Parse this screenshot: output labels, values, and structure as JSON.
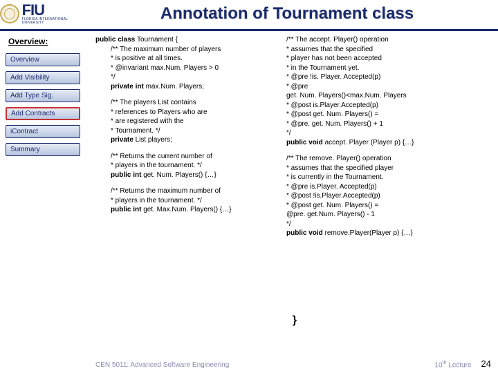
{
  "title": "Annotation of  Tournament class",
  "logo": {
    "text": "FIU",
    "sub": "FLORIDA INTERNATIONAL UNIVERSITY"
  },
  "sidebar": {
    "heading": "Overview:",
    "items": [
      {
        "label": "Overview",
        "active": false
      },
      {
        "label": "Add Visibility",
        "active": false
      },
      {
        "label": "Add Type Sig.",
        "active": false
      },
      {
        "label": "Add Contracts",
        "active": true
      },
      {
        "label": "iContract",
        "active": false
      },
      {
        "label": "Summary",
        "active": false
      }
    ]
  },
  "code": {
    "decl_pre": "public class ",
    "decl_name": "Tournament {",
    "b1_l1": "/** The maximum number of players",
    "b1_l2": " * is positive at all times.",
    "b1_l3": " * @invariant max.Num. Players > 0",
    "b1_l4": " */",
    "b1_l5a": "private int ",
    "b1_l5b": "max.Num. Players;",
    "b2_l1": "/** The players List contains",
    "b2_l2": " * references to Players who are",
    "b2_l3": " * are registered with the",
    "b2_l4": " * Tournament. */",
    "b2_l5a": "private ",
    "b2_l5b": "List players;",
    "b3_l1": "/** Returns the current number of",
    "b3_l2": " * players in the tournament. */",
    "b3_l3a": "public int ",
    "b3_l3b": "get. Num. Players() {…}",
    "b4_l1": "/** Returns the maximum number of",
    "b4_l2": " * players in the tournament. */",
    "b4_l3a": "public int ",
    "b4_l3b": "get. Max.Num. Players() {…}",
    "c1_l1": "/** The accept. Player() operation",
    "c1_l2": " * assumes that the specified",
    "c1_l3": " * player has not been accepted",
    "c1_l4": " * in the Tournament yet.",
    "c1_l5": " * @pre !is. Player. Accepted(p)",
    "c1_l6": " * @pre",
    "c1_l7": "get. Num. Players()<max.Num. Players",
    "c1_l8": " * @post is.Player.Accepted(p)",
    "c1_l9": " * @post get. Num. Players() =",
    "c1_l10": " *     @pre. get. Num. Players() + 1",
    "c1_l11": " */",
    "c1_l12a": "public void ",
    "c1_l12b": "accept. Player (Player p) {…}",
    "c2_l1": "/** The remove. Player() operation",
    "c2_l2": " * assumes that the specified player",
    "c2_l3": " * is currently in the Tournament.",
    "c2_l4": " * @pre is.Player. Accepted(p)",
    "c2_l5": " * @post !is.Player.Accepted(p)",
    "c2_l6": " * @post get. Num. Players() =",
    "c2_l7": "     @pre. get.Num. Players() - 1",
    "c2_l8": " */",
    "c2_l9a": "public void ",
    "c2_l9b": "remove.Player(Player p) {…}",
    "close": "}"
  },
  "footer": {
    "left": "CEN 5011: Advanced Software Engineering",
    "right_a": "10",
    "right_b": "th",
    "right_c": " Lecture",
    "num": "24"
  }
}
